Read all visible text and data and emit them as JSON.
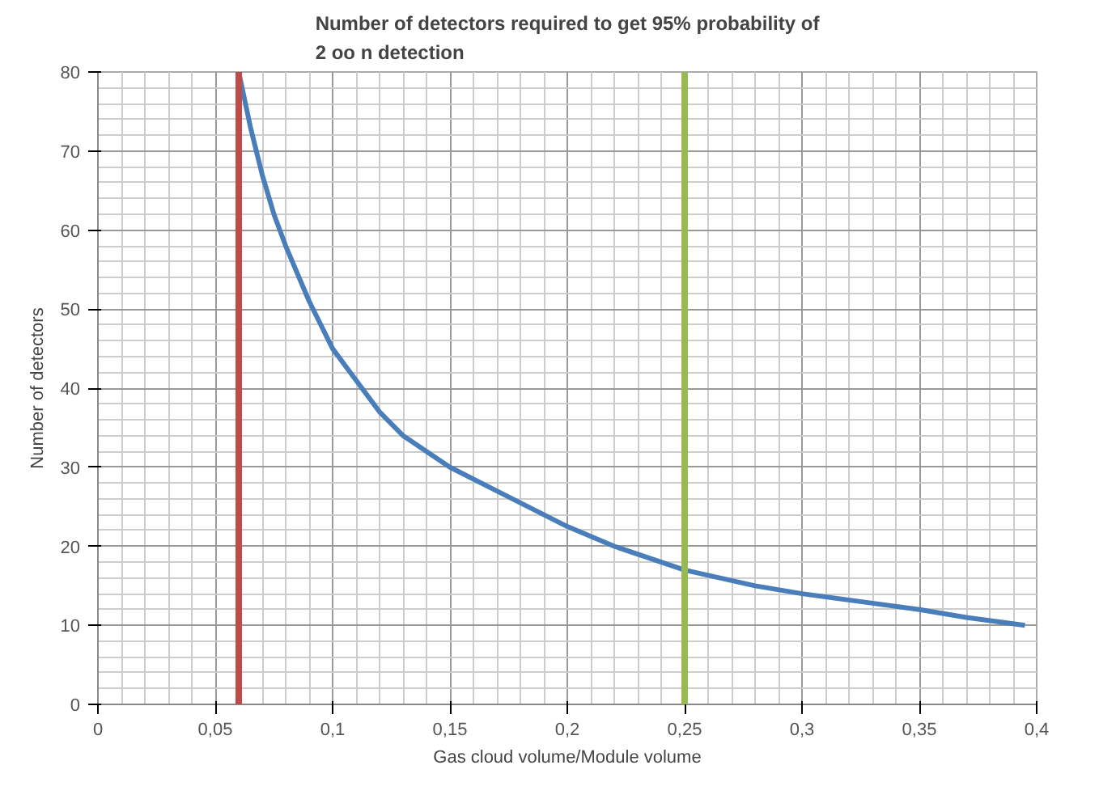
{
  "chart_data": {
    "type": "line",
    "title": "Number of detectors required to get 95% probability of\n2 oo n detection",
    "xlabel": "Gas cloud volume/Module volume",
    "ylabel": "Number of detectors",
    "x": [
      0.06,
      0.065,
      0.07,
      0.075,
      0.08,
      0.09,
      0.1,
      0.11,
      0.12,
      0.13,
      0.14,
      0.15,
      0.17,
      0.2,
      0.22,
      0.25,
      0.28,
      0.3,
      0.33,
      0.35,
      0.37,
      0.395
    ],
    "series": [
      {
        "color": "#4a7ebb",
        "values": [
          80,
          73,
          67,
          62,
          58,
          51,
          45,
          41,
          37,
          34,
          32,
          30,
          27,
          22.5,
          20,
          17,
          15,
          14,
          12.8,
          12,
          11,
          10
        ]
      }
    ],
    "xlim": [
      0,
      0.4
    ],
    "ylim": [
      0,
      80
    ],
    "xticks": [
      0,
      {
        "value": 0.05,
        "label": "0,05"
      },
      {
        "value": 0.1,
        "label": "0,1"
      },
      {
        "value": 0.15,
        "label": "0,15"
      },
      {
        "value": 0.2,
        "label": "0,2"
      },
      {
        "value": 0.25,
        "label": "0,25"
      },
      {
        "value": 0.3,
        "label": "0,3"
      },
      {
        "value": 0.35,
        "label": "0,35"
      },
      {
        "value": 0.4,
        "label": "0,4"
      }
    ],
    "yticks": [
      0,
      10,
      20,
      30,
      40,
      50,
      60,
      70,
      80
    ],
    "grid": true,
    "marker": "none",
    "line_style": "solid",
    "ref_lines": [
      {
        "axis": "x",
        "value": 0.06,
        "label": null,
        "color": "#be4b48"
      },
      {
        "axis": "x",
        "value": 0.25,
        "label": null,
        "color": "#98b954"
      }
    ]
  }
}
